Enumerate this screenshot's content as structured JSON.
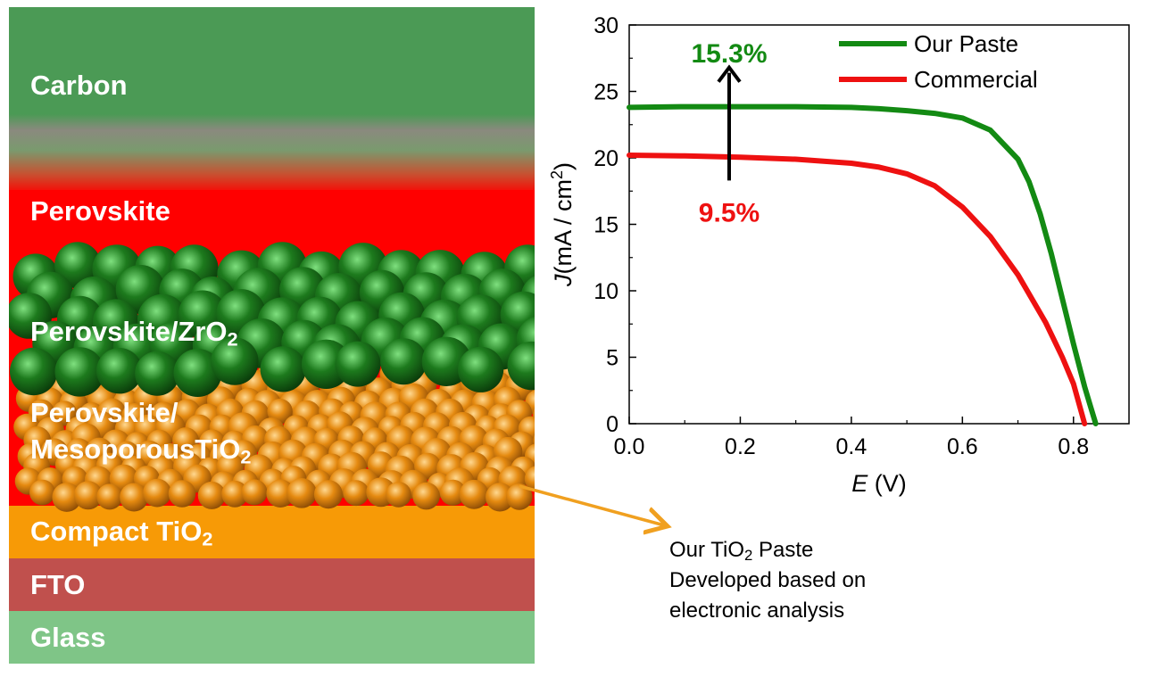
{
  "colors": {
    "carbon": "#4b9a55",
    "perovskite": "#ff0000",
    "compact": "#f79a06",
    "fto": "#c0504d",
    "glass": "#7fc587",
    "zro2_sphere": "#1d7a1d",
    "tio2_sphere": "#e58a10",
    "our_paste": "#138a13",
    "commercial": "#ee1111",
    "callout_arrow": "#f0a020"
  },
  "layers": {
    "carbon": "Carbon",
    "perovskite": "Perovskite",
    "zro2": {
      "text": "Perovskite/ZrO",
      "sub": "2"
    },
    "meso_line1": "Perovskite/",
    "meso_line2": {
      "text": "MesoporousTiO",
      "sub": "2"
    },
    "compact": {
      "text": "Compact TiO",
      "sub": "2"
    },
    "fto": "FTO",
    "glass": "Glass"
  },
  "callout": {
    "line1_pre": "Our TiO",
    "line1_sub": "2",
    "line1_post": " Paste",
    "line2": "Developed based on",
    "line3": "electronic analysis"
  },
  "chart_data": {
    "type": "line",
    "xlabel_var": "E",
    "xlabel_unit": " (V)",
    "ylabel_var": "J",
    "ylabel_unit_pre": "(mA / cm",
    "ylabel_unit_sup": "2",
    "ylabel_unit_post": ")",
    "xlim": [
      0,
      0.9
    ],
    "ylim": [
      0,
      30
    ],
    "xticks": [
      "0.0",
      "0.2",
      "0.4",
      "0.6",
      "0.8"
    ],
    "yticks": [
      "0",
      "5",
      "10",
      "15",
      "20",
      "25",
      "30"
    ],
    "legend_position": "top-right",
    "series": [
      {
        "name": "Our Paste",
        "x": [
          0,
          0.1,
          0.2,
          0.3,
          0.4,
          0.45,
          0.5,
          0.55,
          0.6,
          0.65,
          0.7,
          0.72,
          0.74,
          0.76,
          0.78,
          0.8,
          0.82,
          0.83,
          0.84
        ],
        "y": [
          23.8,
          23.85,
          23.85,
          23.85,
          23.8,
          23.7,
          23.55,
          23.35,
          23.0,
          22.1,
          19.9,
          18.2,
          15.8,
          12.8,
          9.4,
          6.0,
          2.8,
          1.4,
          0
        ]
      },
      {
        "name": "Commercial",
        "x": [
          0,
          0.1,
          0.2,
          0.3,
          0.4,
          0.45,
          0.5,
          0.55,
          0.6,
          0.65,
          0.7,
          0.75,
          0.78,
          0.8,
          0.82
        ],
        "y": [
          20.2,
          20.15,
          20.05,
          19.9,
          19.6,
          19.3,
          18.8,
          17.9,
          16.3,
          14.1,
          11.2,
          7.6,
          5.0,
          3.0,
          0
        ]
      }
    ],
    "annotations": [
      {
        "text": "15.3%",
        "x": 0.18,
        "y": 28,
        "color": "#138a13"
      },
      {
        "text": "9.5%",
        "x": 0.18,
        "y": 16,
        "color": "#ee1111"
      }
    ],
    "arrow": {
      "x": 0.18,
      "y_from": 18.3,
      "y_to": 26.8
    }
  }
}
